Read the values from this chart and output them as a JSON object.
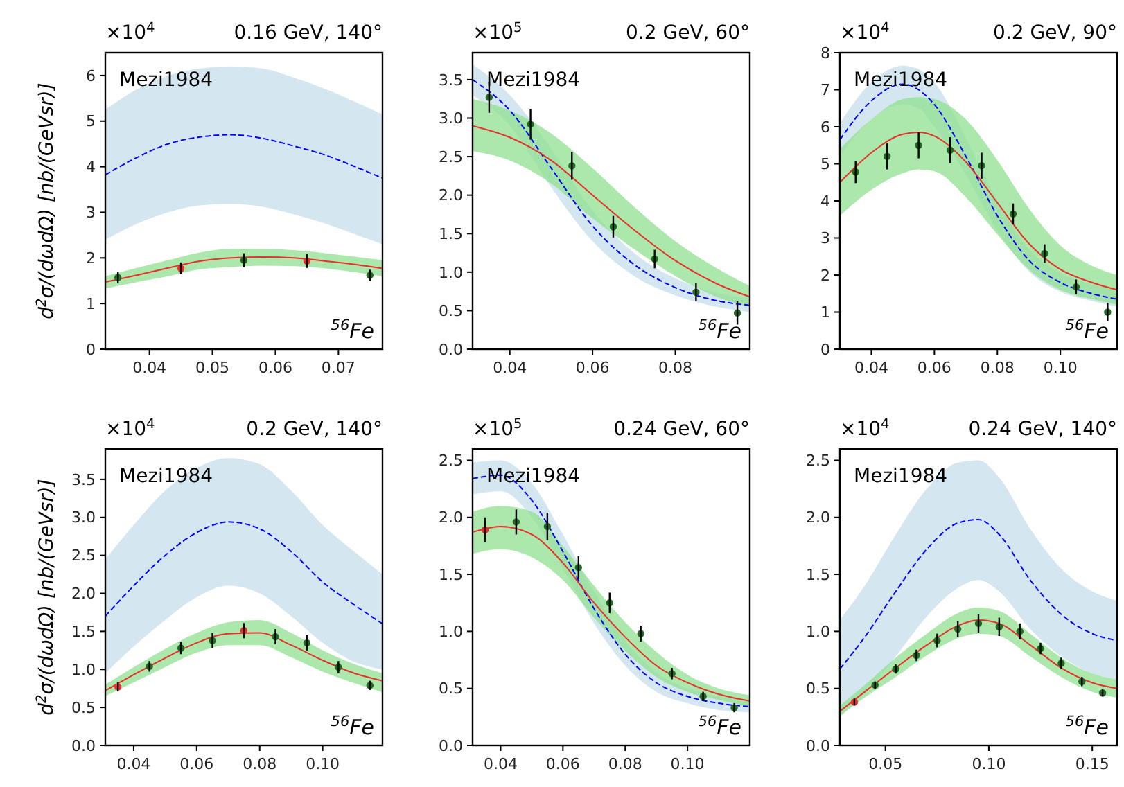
{
  "chart_data": [
    {
      "type": "line",
      "title": "0.16 GeV, 140°",
      "ylabel": "d$^{2}$σ/(dωdΩ)   [nb/(GeVsr)]",
      "annotations": [
        "×10$^{4}$",
        "Mezi1984",
        "$^{56}$Fe"
      ],
      "xlim": [
        0.033,
        0.077
      ],
      "xticks": [
        0.04,
        0.05,
        0.06,
        0.07
      ],
      "ylim": [
        0,
        6.5
      ],
      "yticks": [
        0,
        1,
        2,
        3,
        4,
        5,
        6
      ],
      "grid": false,
      "legend": false,
      "series": [
        {
          "type": "line",
          "color": "#0000ff",
          "line_style": "dashed",
          "marker": "none",
          "x": [
            0.033,
            0.038,
            0.043,
            0.048,
            0.053,
            0.058,
            0.063,
            0.068,
            0.073,
            0.077
          ],
          "values": [
            3.82,
            4.2,
            4.5,
            4.65,
            4.7,
            4.62,
            4.45,
            4.25,
            3.98,
            3.75
          ],
          "lower": [
            2.4,
            2.75,
            3.0,
            3.15,
            3.18,
            3.12,
            2.95,
            2.75,
            2.5,
            2.3
          ],
          "upper": [
            5.25,
            5.7,
            6.0,
            6.15,
            6.2,
            6.15,
            5.95,
            5.7,
            5.4,
            5.15
          ]
        },
        {
          "type": "line",
          "color": "#e8302a",
          "line_style": "solid",
          "marker": "none",
          "x": [
            0.033,
            0.038,
            0.043,
            0.048,
            0.053,
            0.058,
            0.063,
            0.068,
            0.073,
            0.077
          ],
          "values": [
            1.47,
            1.62,
            1.78,
            1.93,
            2.0,
            2.02,
            2.0,
            1.93,
            1.85,
            1.77
          ],
          "lower": [
            1.33,
            1.47,
            1.6,
            1.75,
            1.8,
            1.83,
            1.82,
            1.77,
            1.68,
            1.6
          ],
          "upper": [
            1.6,
            1.78,
            1.95,
            2.12,
            2.2,
            2.2,
            2.17,
            2.1,
            2.02,
            1.95
          ]
        },
        {
          "type": "scatter",
          "marker": "circle",
          "x": [
            0.035,
            0.045,
            0.055,
            0.065,
            0.075
          ],
          "values": [
            1.57,
            1.77,
            1.95,
            1.93,
            1.62
          ],
          "errors": [
            0.12,
            0.13,
            0.15,
            0.15,
            0.12
          ],
          "colors": [
            "#1f6b1f",
            "#e8302a",
            "#1f6b1f",
            "#e8302a",
            "#1f6b1f"
          ]
        }
      ]
    },
    {
      "type": "line",
      "title": "0.2 GeV, 60°",
      "annotations": [
        "×10$^{5}$",
        "Mezi1984",
        "$^{56}$Fe"
      ],
      "xlim": [
        0.031,
        0.098
      ],
      "xticks": [
        0.04,
        0.06,
        0.08
      ],
      "ylim": [
        0,
        3.85
      ],
      "yticks": [
        {
          "value": 0,
          "label": "0.0"
        },
        {
          "value": 0.5,
          "label": "0.5"
        },
        {
          "value": 1,
          "label": "1.0"
        },
        {
          "value": 1.5,
          "label": "1.5"
        },
        {
          "value": 2,
          "label": "2.0"
        },
        {
          "value": 2.5,
          "label": "2.5"
        },
        {
          "value": 3,
          "label": "3.0"
        },
        {
          "value": 3.5,
          "label": "3.5"
        }
      ],
      "grid": false,
      "legend": false,
      "series": [
        {
          "type": "line",
          "color": "#0000ff",
          "line_style": "dashed",
          "marker": "none",
          "x": [
            0.031,
            0.04,
            0.05,
            0.06,
            0.07,
            0.08,
            0.09,
            0.098
          ],
          "values": [
            3.5,
            3.1,
            2.35,
            1.6,
            1.1,
            0.8,
            0.63,
            0.57
          ],
          "lower": [
            3.3,
            2.9,
            2.1,
            1.4,
            0.95,
            0.7,
            0.55,
            0.48
          ],
          "upper": [
            3.7,
            3.3,
            2.6,
            1.8,
            1.25,
            0.92,
            0.73,
            0.66
          ]
        },
        {
          "type": "line",
          "color": "#e8302a",
          "line_style": "solid",
          "marker": "none",
          "x": [
            0.031,
            0.04,
            0.05,
            0.06,
            0.07,
            0.08,
            0.09,
            0.098
          ],
          "values": [
            2.9,
            2.75,
            2.45,
            2.0,
            1.55,
            1.15,
            0.85,
            0.68
          ],
          "lower": [
            2.57,
            2.45,
            2.15,
            1.7,
            1.3,
            0.95,
            0.68,
            0.55
          ],
          "upper": [
            3.25,
            3.1,
            2.8,
            2.35,
            1.85,
            1.4,
            1.05,
            0.82
          ]
        },
        {
          "type": "scatter",
          "marker": "circle",
          "x": [
            0.035,
            0.045,
            0.055,
            0.065,
            0.075,
            0.085,
            0.095
          ],
          "values": [
            3.27,
            2.92,
            2.38,
            1.59,
            1.17,
            0.74,
            0.47
          ],
          "errors": [
            0.2,
            0.2,
            0.18,
            0.14,
            0.12,
            0.12,
            0.15
          ],
          "colors": [
            "#1f6b1f",
            "#1f6b1f",
            "#1f6b1f",
            "#1f6b1f",
            "#1f6b1f",
            "#1f6b1f",
            "#1f6b1f"
          ]
        }
      ]
    },
    {
      "type": "line",
      "title": "0.2 GeV, 90°",
      "annotations": [
        "×10$^{4}$",
        "Mezi1984",
        "$^{56}$Fe"
      ],
      "xlim": [
        0.03,
        0.118
      ],
      "xticks": [
        0.04,
        0.06,
        0.08,
        {
          "value": 0.1,
          "label": "0.10"
        }
      ],
      "ylim": [
        0,
        8
      ],
      "yticks": [
        0,
        1,
        2,
        3,
        4,
        5,
        6,
        7,
        8
      ],
      "grid": false,
      "legend": false,
      "series": [
        {
          "type": "line",
          "color": "#0000ff",
          "line_style": "dashed",
          "marker": "none",
          "x": [
            0.03,
            0.04,
            0.05,
            0.055,
            0.06,
            0.07,
            0.08,
            0.09,
            0.1,
            0.11,
            0.118
          ],
          "values": [
            5.65,
            6.7,
            7.15,
            7.0,
            6.6,
            5.2,
            3.6,
            2.4,
            1.8,
            1.5,
            1.35
          ],
          "lower": [
            5.2,
            6.2,
            6.6,
            6.5,
            6.0,
            4.7,
            3.2,
            2.1,
            1.55,
            1.3,
            1.15
          ],
          "upper": [
            6.1,
            7.2,
            7.65,
            7.55,
            7.2,
            5.7,
            4.0,
            2.7,
            2.05,
            1.75,
            1.6
          ]
        },
        {
          "type": "line",
          "color": "#e8302a",
          "line_style": "solid",
          "marker": "none",
          "x": [
            0.03,
            0.04,
            0.05,
            0.055,
            0.06,
            0.07,
            0.08,
            0.09,
            0.1,
            0.11,
            0.118
          ],
          "values": [
            4.5,
            5.3,
            5.8,
            5.85,
            5.75,
            5.05,
            3.95,
            2.85,
            2.15,
            1.8,
            1.6
          ],
          "lower": [
            3.6,
            4.3,
            4.75,
            4.85,
            4.8,
            4.1,
            3.1,
            2.15,
            1.6,
            1.35,
            1.2
          ],
          "upper": [
            5.4,
            6.2,
            6.75,
            6.8,
            6.75,
            6.2,
            5.1,
            3.8,
            2.8,
            2.25,
            2.0
          ]
        },
        {
          "type": "scatter",
          "marker": "circle",
          "x": [
            0.035,
            0.045,
            0.055,
            0.065,
            0.075,
            0.085,
            0.095,
            0.105,
            0.115
          ],
          "values": [
            4.78,
            5.2,
            5.5,
            5.37,
            4.95,
            3.65,
            2.58,
            1.68,
            1.0
          ],
          "errors": [
            0.3,
            0.35,
            0.35,
            0.35,
            0.35,
            0.28,
            0.25,
            0.2,
            0.25
          ],
          "colors": [
            "#1f6b1f",
            "#1f6b1f",
            "#1f6b1f",
            "#1f6b1f",
            "#1f6b1f",
            "#1f6b1f",
            "#1f6b1f",
            "#1f6b1f",
            "#1f6b1f"
          ]
        }
      ]
    },
    {
      "type": "line",
      "title": "0.2 GeV, 140°",
      "ylabel": "d$^{2}$σ/(dωdΩ)   [nb/(GeVsr)]",
      "annotations": [
        "×10$^{4}$",
        "Mezi1984",
        "$^{56}$Fe"
      ],
      "xlim": [
        0.031,
        0.119
      ],
      "xticks": [
        0.04,
        0.06,
        0.08,
        {
          "value": 0.1,
          "label": "0.10"
        }
      ],
      "ylim": [
        0,
        3.9
      ],
      "yticks": [
        {
          "value": 0,
          "label": "0.0"
        },
        {
          "value": 0.5,
          "label": "0.5"
        },
        {
          "value": 1,
          "label": "1.0"
        },
        {
          "value": 1.5,
          "label": "1.5"
        },
        {
          "value": 2,
          "label": "2.0"
        },
        {
          "value": 2.5,
          "label": "2.5"
        },
        {
          "value": 3,
          "label": "3.0"
        },
        {
          "value": 3.5,
          "label": "3.5"
        }
      ],
      "grid": false,
      "legend": false,
      "series": [
        {
          "type": "line",
          "color": "#0000ff",
          "line_style": "dashed",
          "marker": "none",
          "x": [
            0.031,
            0.04,
            0.05,
            0.06,
            0.07,
            0.08,
            0.09,
            0.1,
            0.11,
            0.119
          ],
          "values": [
            1.7,
            2.1,
            2.5,
            2.8,
            2.94,
            2.85,
            2.55,
            2.15,
            1.85,
            1.6
          ],
          "lower": [
            0.95,
            1.3,
            1.65,
            1.95,
            2.1,
            2.0,
            1.7,
            1.35,
            1.1,
            1.0
          ],
          "upper": [
            2.45,
            2.9,
            3.35,
            3.65,
            3.78,
            3.7,
            3.35,
            2.9,
            2.55,
            2.25
          ]
        },
        {
          "type": "line",
          "color": "#e8302a",
          "line_style": "solid",
          "marker": "none",
          "x": [
            0.031,
            0.04,
            0.05,
            0.06,
            0.07,
            0.08,
            0.09,
            0.1,
            0.11,
            0.119
          ],
          "values": [
            0.72,
            0.93,
            1.15,
            1.35,
            1.47,
            1.48,
            1.32,
            1.12,
            0.95,
            0.85
          ],
          "lower": [
            0.65,
            0.83,
            1.03,
            1.22,
            1.32,
            1.32,
            1.16,
            0.97,
            0.82,
            0.7
          ],
          "upper": [
            0.8,
            1.03,
            1.27,
            1.48,
            1.62,
            1.65,
            1.48,
            1.25,
            1.07,
            0.95
          ]
        },
        {
          "type": "scatter",
          "marker": "circle",
          "x": [
            0.035,
            0.045,
            0.055,
            0.065,
            0.075,
            0.085,
            0.095,
            0.105,
            0.115
          ],
          "values": [
            0.77,
            1.04,
            1.28,
            1.38,
            1.51,
            1.43,
            1.35,
            1.03,
            0.79
          ],
          "errors": [
            0.06,
            0.07,
            0.08,
            0.1,
            0.1,
            0.1,
            0.1,
            0.08,
            0.06
          ],
          "colors": [
            "#e8302a",
            "#1f6b1f",
            "#1f6b1f",
            "#1f6b1f",
            "#e8302a",
            "#1f6b1f",
            "#1f6b1f",
            "#1f6b1f",
            "#1f6b1f"
          ]
        }
      ]
    },
    {
      "type": "line",
      "title": "0.24 GeV, 60°",
      "annotations": [
        "×10$^{5}$",
        "Mezi1984",
        "$^{56}$Fe"
      ],
      "xlim": [
        0.031,
        0.12
      ],
      "xticks": [
        0.04,
        0.06,
        0.08,
        {
          "value": 0.1,
          "label": "0.10"
        }
      ],
      "ylim": [
        0,
        2.6
      ],
      "yticks": [
        {
          "value": 0,
          "label": "0.0"
        },
        {
          "value": 0.5,
          "label": "0.5"
        },
        {
          "value": 1,
          "label": "1.0"
        },
        {
          "value": 1.5,
          "label": "1.5"
        },
        {
          "value": 2,
          "label": "2.0"
        },
        {
          "value": 2.5,
          "label": "2.5"
        }
      ],
      "grid": false,
      "legend": false,
      "series": [
        {
          "type": "line",
          "color": "#0000ff",
          "line_style": "dashed",
          "marker": "none",
          "x": [
            0.031,
            0.04,
            0.05,
            0.06,
            0.07,
            0.08,
            0.09,
            0.1,
            0.11,
            0.12
          ],
          "values": [
            2.34,
            2.37,
            2.15,
            1.7,
            1.2,
            0.8,
            0.55,
            0.43,
            0.37,
            0.34
          ],
          "lower": [
            2.2,
            2.23,
            2.0,
            1.55,
            1.07,
            0.7,
            0.47,
            0.37,
            0.31,
            0.29
          ],
          "upper": [
            2.48,
            2.5,
            2.3,
            1.85,
            1.35,
            0.92,
            0.64,
            0.5,
            0.43,
            0.4
          ]
        },
        {
          "type": "line",
          "color": "#e8302a",
          "line_style": "solid",
          "marker": "none",
          "x": [
            0.031,
            0.04,
            0.05,
            0.06,
            0.07,
            0.08,
            0.09,
            0.1,
            0.11,
            0.12
          ],
          "values": [
            1.87,
            1.92,
            1.85,
            1.6,
            1.25,
            0.95,
            0.7,
            0.55,
            0.45,
            0.39
          ],
          "lower": [
            1.68,
            1.72,
            1.65,
            1.45,
            1.12,
            0.83,
            0.6,
            0.47,
            0.4,
            0.34
          ],
          "upper": [
            2.05,
            2.1,
            2.05,
            1.75,
            1.4,
            1.08,
            0.82,
            0.62,
            0.5,
            0.44
          ]
        },
        {
          "type": "scatter",
          "marker": "circle",
          "x": [
            0.035,
            0.045,
            0.055,
            0.065,
            0.075,
            0.085,
            0.095,
            0.105,
            0.115
          ],
          "values": [
            1.89,
            1.96,
            1.92,
            1.56,
            1.25,
            0.98,
            0.63,
            0.43,
            0.33
          ],
          "errors": [
            0.11,
            0.11,
            0.12,
            0.1,
            0.09,
            0.07,
            0.05,
            0.04,
            0.04
          ],
          "colors": [
            "#e8302a",
            "#1f6b1f",
            "#1f6b1f",
            "#1f6b1f",
            "#1f6b1f",
            "#1f6b1f",
            "#1f6b1f",
            "#1f6b1f",
            "#1f6b1f"
          ]
        }
      ]
    },
    {
      "type": "line",
      "title": "0.24 GeV, 140°",
      "annotations": [
        "×10$^{4}$",
        "Mezi1984",
        "$^{56}$Fe"
      ],
      "xlim": [
        0.028,
        0.162
      ],
      "xticks": [
        {
          "value": 0.05,
          "label": "0.05"
        },
        {
          "value": 0.1,
          "label": "0.10"
        },
        {
          "value": 0.15,
          "label": "0.15"
        }
      ],
      "ylim": [
        0,
        2.6
      ],
      "yticks": [
        {
          "value": 0,
          "label": "0.0"
        },
        {
          "value": 0.5,
          "label": "0.5"
        },
        {
          "value": 1,
          "label": "1.0"
        },
        {
          "value": 1.5,
          "label": "1.5"
        },
        {
          "value": 2,
          "label": "2.0"
        },
        {
          "value": 2.5,
          "label": "2.5"
        }
      ],
      "grid": false,
      "legend": false,
      "series": [
        {
          "type": "line",
          "color": "#0000ff",
          "line_style": "dashed",
          "marker": "none",
          "x": [
            0.028,
            0.04,
            0.055,
            0.07,
            0.085,
            0.095,
            0.105,
            0.12,
            0.135,
            0.15,
            0.162
          ],
          "values": [
            0.67,
            0.95,
            1.35,
            1.72,
            1.95,
            1.98,
            1.85,
            1.45,
            1.15,
            0.98,
            0.92
          ],
          "lower": [
            0.25,
            0.45,
            0.78,
            1.13,
            1.38,
            1.45,
            1.35,
            1.02,
            0.78,
            0.63,
            0.58
          ],
          "upper": [
            1.1,
            1.4,
            1.85,
            2.25,
            2.48,
            2.5,
            2.35,
            1.9,
            1.55,
            1.35,
            1.27
          ]
        },
        {
          "type": "line",
          "color": "#e8302a",
          "line_style": "solid",
          "marker": "none",
          "x": [
            0.028,
            0.04,
            0.055,
            0.07,
            0.085,
            0.095,
            0.105,
            0.12,
            0.135,
            0.15,
            0.162
          ],
          "values": [
            0.3,
            0.47,
            0.68,
            0.88,
            1.05,
            1.1,
            1.07,
            0.88,
            0.68,
            0.55,
            0.5
          ],
          "lower": [
            0.26,
            0.42,
            0.6,
            0.79,
            0.94,
            0.98,
            0.96,
            0.78,
            0.6,
            0.47,
            0.42
          ],
          "upper": [
            0.35,
            0.53,
            0.77,
            0.98,
            1.16,
            1.21,
            1.18,
            0.98,
            0.77,
            0.63,
            0.58
          ]
        },
        {
          "type": "scatter",
          "marker": "circle",
          "x": [
            0.035,
            0.045,
            0.055,
            0.065,
            0.075,
            0.085,
            0.095,
            0.105,
            0.115,
            0.125,
            0.135,
            0.145,
            0.155
          ],
          "values": [
            0.38,
            0.53,
            0.67,
            0.79,
            0.92,
            1.02,
            1.07,
            1.04,
            1.0,
            0.85,
            0.72,
            0.56,
            0.46
          ],
          "errors": [
            0.03,
            0.03,
            0.04,
            0.05,
            0.06,
            0.07,
            0.08,
            0.08,
            0.07,
            0.05,
            0.05,
            0.04,
            0.03
          ],
          "colors": [
            "#e8302a",
            "#1f6b1f",
            "#1f6b1f",
            "#1f6b1f",
            "#1f6b1f",
            "#1f6b1f",
            "#1f6b1f",
            "#1f6b1f",
            "#1f6b1f",
            "#1f6b1f",
            "#1f6b1f",
            "#1f6b1f",
            "#1f6b1f"
          ]
        }
      ]
    }
  ]
}
